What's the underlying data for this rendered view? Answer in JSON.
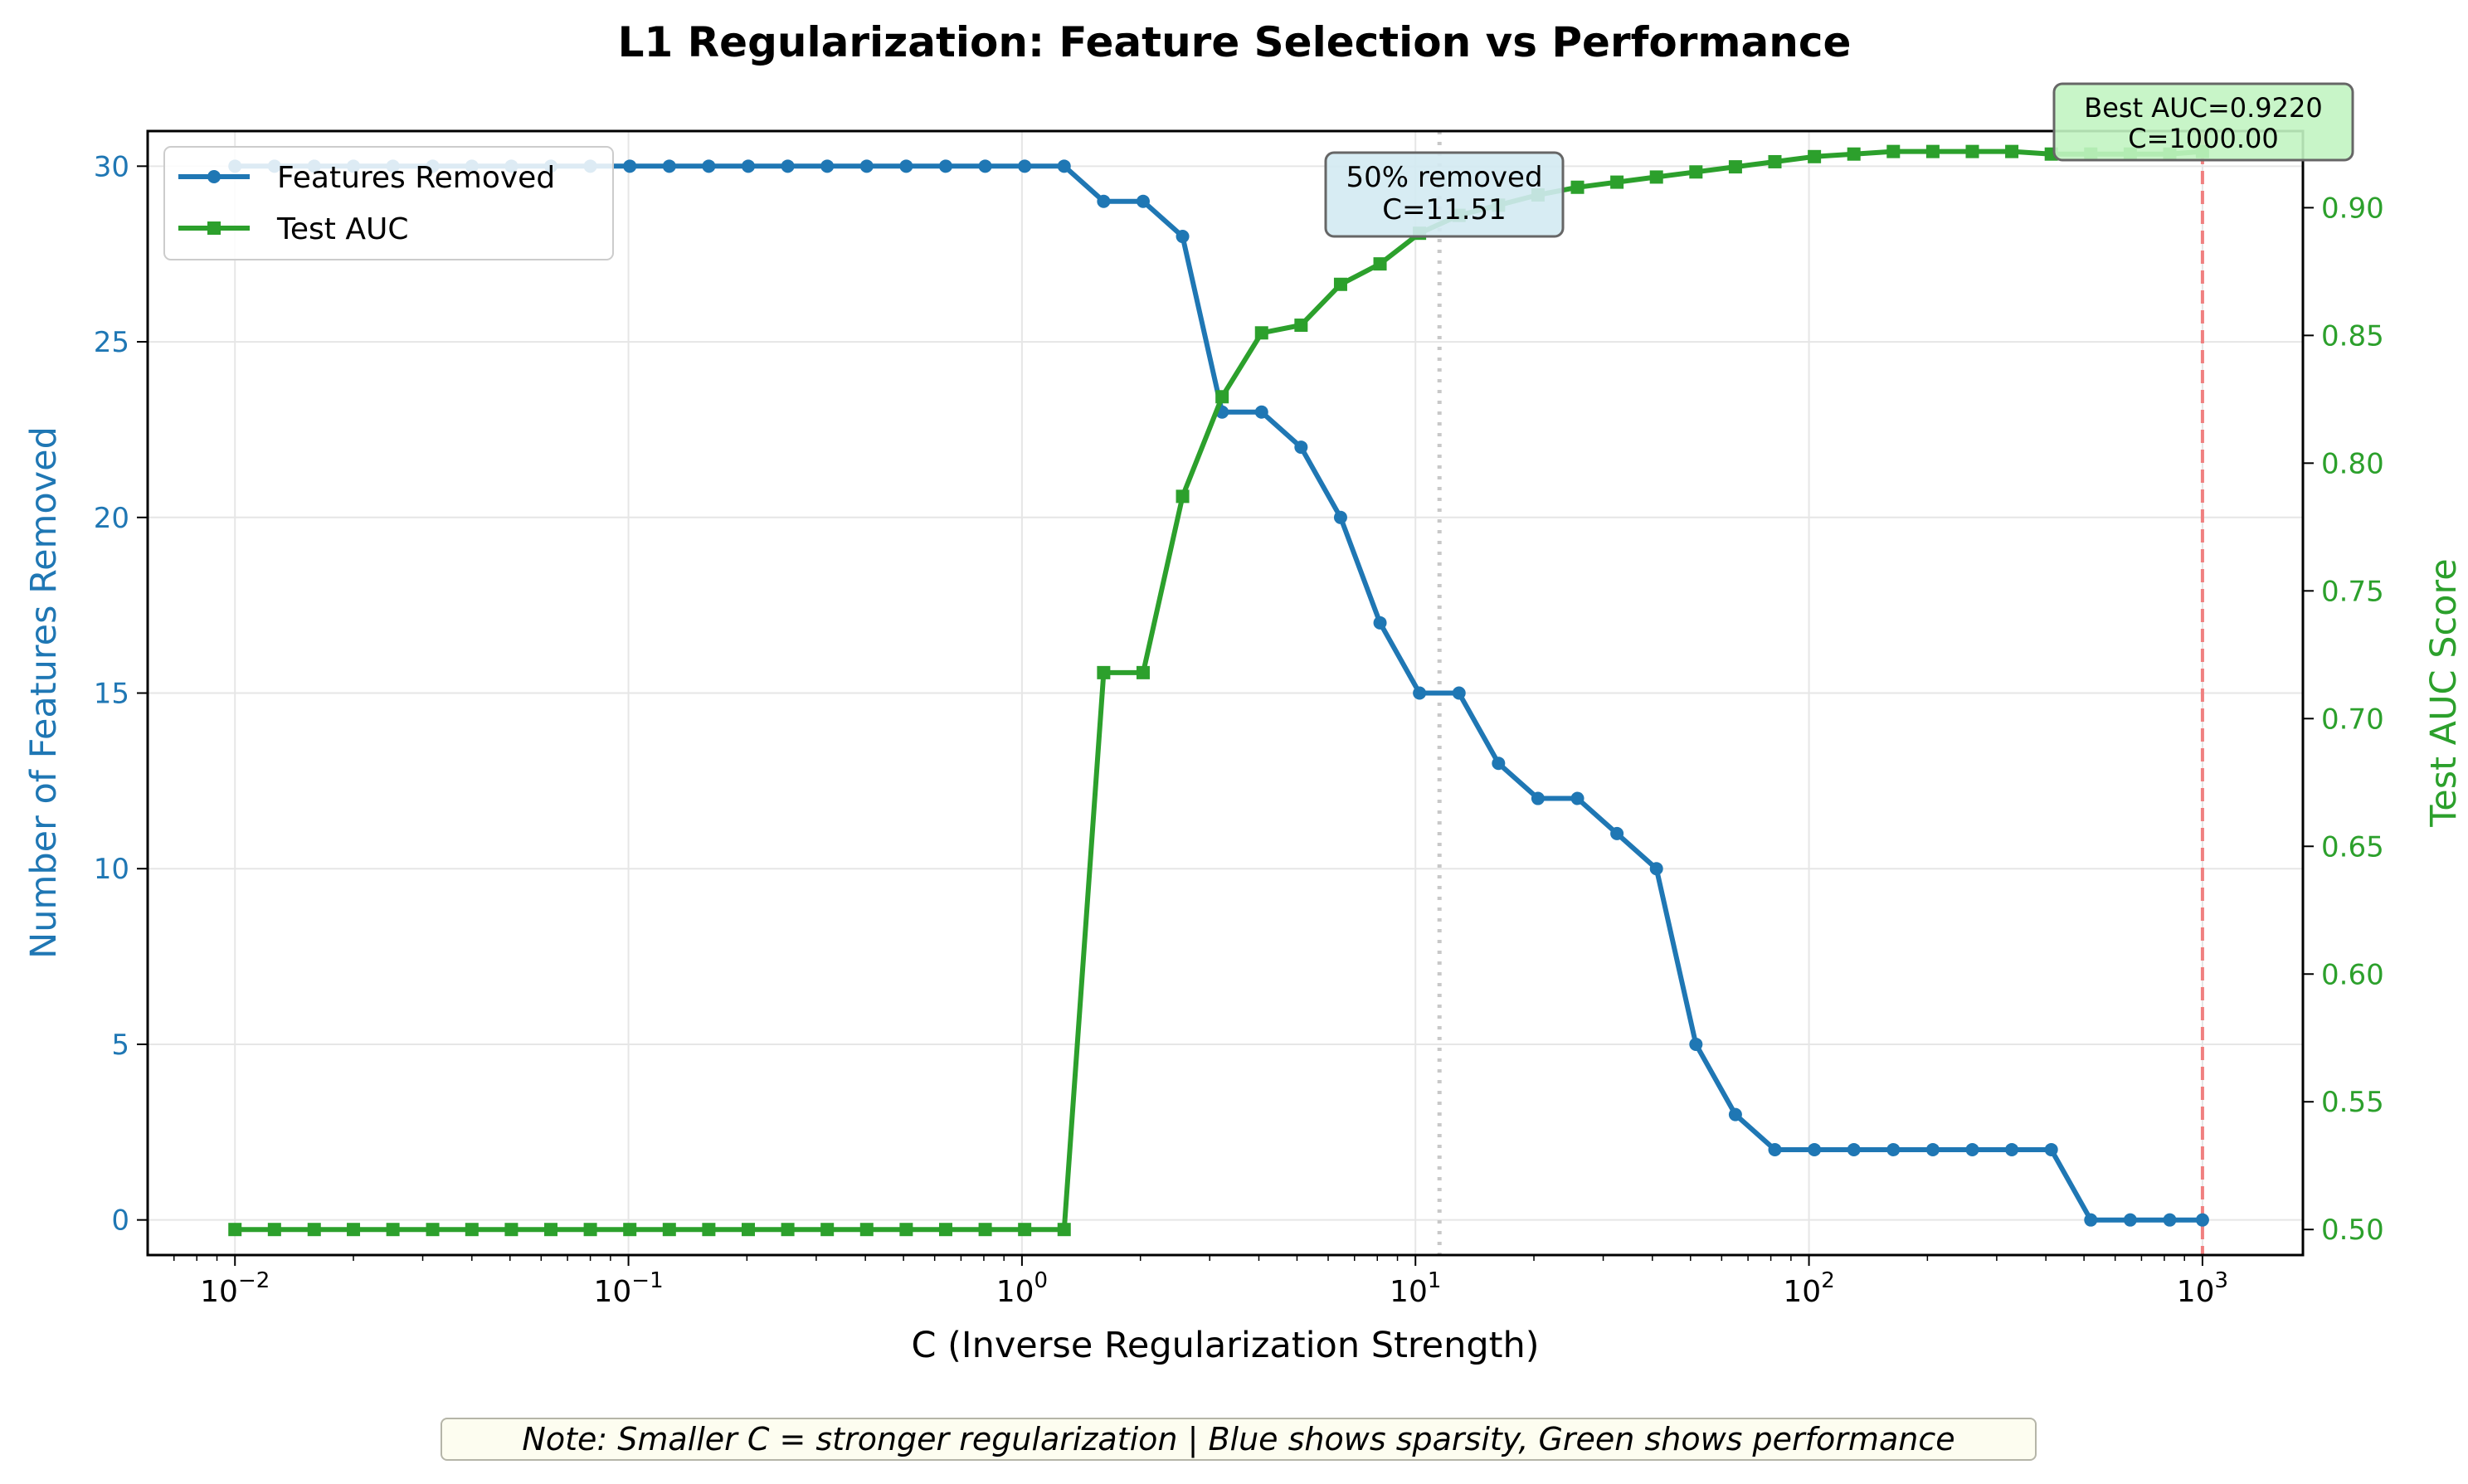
{
  "chart_data": {
    "type": "line",
    "title": "L1 Regularization: Feature Selection vs Performance",
    "xlabel": "C (Inverse Regularization Strength)",
    "ylabel_left": "Number of Features Removed",
    "ylabel_right": "Test AUC Score",
    "x_scale": "log",
    "xlim": [
      0.006,
      1800
    ],
    "ylim_left": [
      -1,
      31
    ],
    "ylim_right": [
      0.49,
      0.93
    ],
    "x_ticks": [
      {
        "value": 0.01,
        "base": "10",
        "exp": "−2"
      },
      {
        "value": 0.1,
        "base": "10",
        "exp": "−1"
      },
      {
        "value": 1,
        "base": "10",
        "exp": "0"
      },
      {
        "value": 10,
        "base": "10",
        "exp": "1"
      },
      {
        "value": 100,
        "base": "10",
        "exp": "2"
      },
      {
        "value": 1000,
        "base": "10",
        "exp": "3"
      }
    ],
    "y_ticks_left": [
      0,
      5,
      10,
      15,
      20,
      25,
      30
    ],
    "y_ticks_right": [
      "0.50",
      "0.55",
      "0.60",
      "0.65",
      "0.70",
      "0.75",
      "0.80",
      "0.85",
      "0.90"
    ],
    "grid": true,
    "legend_position": "top-left",
    "x": [
      0.01,
      0.0126,
      0.0159,
      0.02,
      0.0252,
      0.0318,
      0.04,
      0.0504,
      0.0635,
      0.08,
      0.1008,
      0.127,
      0.16,
      0.2016,
      0.254,
      0.32,
      0.4032,
      0.508,
      0.64,
      0.8064,
      1.016,
      1.28,
      1.6129,
      2.032,
      2.56,
      3.2258,
      4.064,
      5.12,
      6.4516,
      8.128,
      10.24,
      12.903,
      16.256,
      20.48,
      25.806,
      32.512,
      40.96,
      51.613,
      65.024,
      81.92,
      103.23,
      130.05,
      163.84,
      206.45,
      260.1,
      327.68,
      412.9,
      520.2,
      655.36,
      825.8,
      1000
    ],
    "series": [
      {
        "name": "Features Removed",
        "axis": "left",
        "color": "#1f77b4",
        "marker": "circle",
        "values": [
          30,
          30,
          30,
          30,
          30,
          30,
          30,
          30,
          30,
          30,
          30,
          30,
          30,
          30,
          30,
          30,
          30,
          30,
          30,
          30,
          30,
          30,
          29,
          29,
          28,
          23,
          23,
          22,
          20,
          17,
          15,
          15,
          13,
          12,
          12,
          11,
          10,
          5,
          3,
          2,
          2,
          2,
          2,
          2,
          2,
          2,
          2,
          0,
          0,
          0,
          0
        ]
      },
      {
        "name": "Test AUC",
        "axis": "right",
        "color": "#2ca02c",
        "marker": "square",
        "values": [
          0.5,
          0.5,
          0.5,
          0.5,
          0.5,
          0.5,
          0.5,
          0.5,
          0.5,
          0.5,
          0.5,
          0.5,
          0.5,
          0.5,
          0.5,
          0.5,
          0.5,
          0.5,
          0.5,
          0.5,
          0.5,
          0.5,
          0.718,
          0.718,
          0.787,
          0.826,
          0.851,
          0.854,
          0.87,
          0.878,
          0.89,
          0.897,
          0.901,
          0.905,
          0.908,
          0.91,
          0.912,
          0.914,
          0.916,
          0.918,
          0.92,
          0.921,
          0.922,
          0.922,
          0.922,
          0.922,
          0.921,
          0.921,
          0.921,
          0.921,
          0.922
        ]
      }
    ],
    "annotations": [
      {
        "id": "half",
        "line1": "50% removed",
        "line2": "C=11.51",
        "x": 11.51,
        "line_color": "#c8c8c8",
        "box_color": "#d3eaf2"
      },
      {
        "id": "best",
        "line1": "Best AUC=0.9220",
        "line2": "C=1000.00",
        "x": 1000,
        "line_color": "#f08080",
        "box_color": "#c2f4c2"
      }
    ],
    "note": "Note: Smaller C = stronger regularization | Blue shows sparsity, Green shows performance"
  }
}
